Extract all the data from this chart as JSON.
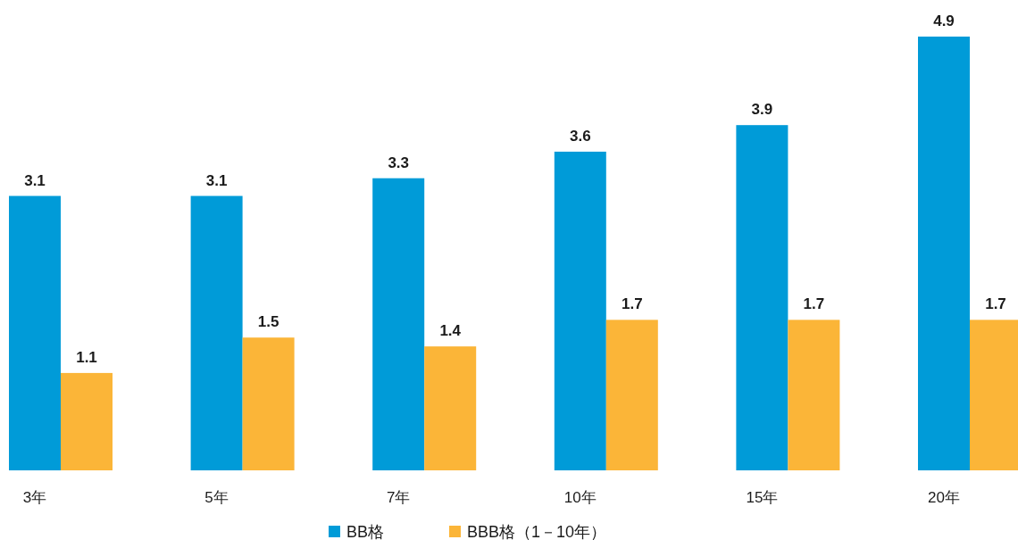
{
  "chart_data": {
    "type": "bar",
    "categories": [
      "3年",
      "5年",
      "7年",
      "10年",
      "15年",
      "20年"
    ],
    "series": [
      {
        "name": "BB格",
        "color": "#009bd8",
        "values": [
          3.1,
          3.1,
          3.3,
          3.6,
          3.9,
          4.9
        ]
      },
      {
        "name": "BBB格（1－10年）",
        "color": "#fbb538",
        "values": [
          1.1,
          1.5,
          1.4,
          1.7,
          1.7,
          1.7
        ]
      }
    ],
    "data_labels": true,
    "legend": "bottom"
  }
}
